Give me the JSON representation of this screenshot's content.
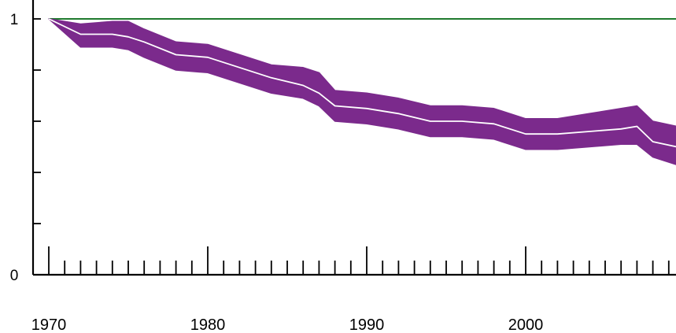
{
  "chart_data": {
    "type": "area",
    "title": "",
    "xlabel": "",
    "ylabel": "",
    "xlim": [
      1970,
      2009.5
    ],
    "ylim": [
      0,
      1
    ],
    "x_ticks": [
      1970,
      1980,
      1990,
      2000
    ],
    "y_ticks": [
      0,
      1
    ],
    "x_tick_labels": [
      "1970",
      "1980",
      "1990",
      "2000"
    ],
    "y_tick_labels": [
      "0",
      "1"
    ],
    "grid": false,
    "reference_line": {
      "y": 1,
      "color": "#1f7a2e"
    },
    "series": [
      {
        "color": "#7b2a8c",
        "center_color": "#ffffff",
        "x": [
          1970,
          1972,
          1974,
          1975,
          1976,
          1978,
          1980,
          1982,
          1984,
          1986,
          1987,
          1988,
          1990,
          1992,
          1994,
          1996,
          1998,
          2000,
          2002,
          2004,
          2006,
          2007,
          2008,
          2009.5
        ],
        "values": [
          1.0,
          0.94,
          0.94,
          0.93,
          0.91,
          0.86,
          0.85,
          0.81,
          0.77,
          0.74,
          0.71,
          0.66,
          0.65,
          0.63,
          0.6,
          0.6,
          0.59,
          0.55,
          0.55,
          0.56,
          0.57,
          0.58,
          0.52,
          0.5
        ],
        "upper": [
          1.0,
          0.98,
          0.99,
          0.99,
          0.96,
          0.91,
          0.9,
          0.86,
          0.82,
          0.81,
          0.79,
          0.72,
          0.71,
          0.69,
          0.66,
          0.66,
          0.65,
          0.61,
          0.61,
          0.63,
          0.65,
          0.66,
          0.6,
          0.58
        ],
        "lower": [
          1.0,
          0.89,
          0.89,
          0.88,
          0.85,
          0.8,
          0.79,
          0.75,
          0.71,
          0.69,
          0.66,
          0.6,
          0.59,
          0.57,
          0.54,
          0.54,
          0.53,
          0.49,
          0.49,
          0.5,
          0.51,
          0.51,
          0.46,
          0.43
        ]
      }
    ]
  }
}
